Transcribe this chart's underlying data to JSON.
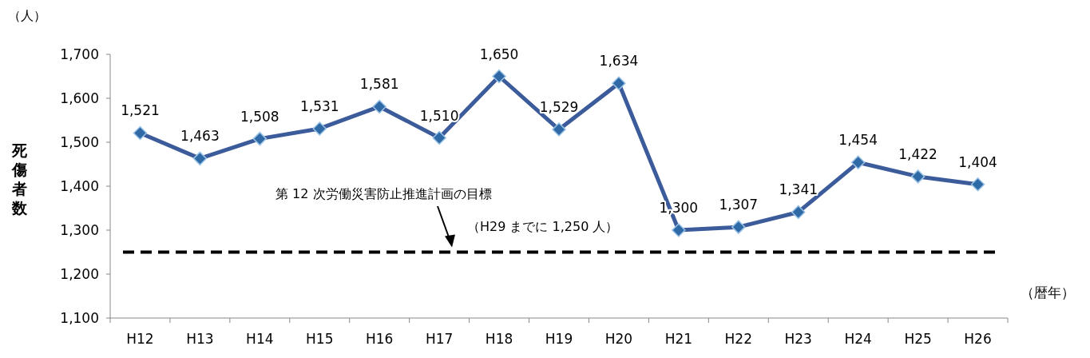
{
  "chart_data": {
    "type": "line",
    "ylabel": "死傷者数",
    "xlabel": "（暦年）",
    "categories": [
      "H12",
      "H13",
      "H14",
      "H15",
      "H16",
      "H17",
      "H18",
      "H19",
      "H20",
      "H21",
      "H22",
      "H23",
      "H24",
      "H25",
      "H26"
    ],
    "series": [
      {
        "color": "#3b5b9a",
        "values": [
          1521,
          1463,
          1508,
          1531,
          1581,
          1510,
          1650,
          1529,
          1634,
          1300,
          1307,
          1341,
          1454,
          1422,
          1404
        ],
        "value_labels": [
          "1,521",
          "1,463",
          "1,508",
          "1,531",
          "1,581",
          "1,510",
          "1,650",
          "1,529",
          "1,634",
          "1,300",
          "1,307",
          "1,341",
          "1,454",
          "1,422",
          "1,404"
        ]
      }
    ],
    "ylim": [
      1100,
      1700
    ],
    "yticks": [
      {
        "value": 1100,
        "label": "1,100"
      },
      {
        "value": 1200,
        "label": "1,200"
      },
      {
        "value": 1300,
        "label": "1,300"
      },
      {
        "value": 1400,
        "label": "1,400"
      },
      {
        "value": 1500,
        "label": "1,500"
      },
      {
        "value": 1600,
        "label": "1,600"
      },
      {
        "value": 1700,
        "label": "1,700"
      }
    ],
    "ref_lines": [
      {
        "axis": "y",
        "value": 1250,
        "label": "第 12 次労働災害防止推進計画の目標",
        "color": "#000000",
        "line_style": "dashed"
      }
    ],
    "annotations": [
      "（人）",
      "（H29 までに 1,250 人）"
    ],
    "marker": "diamond",
    "line_style": "solid"
  }
}
